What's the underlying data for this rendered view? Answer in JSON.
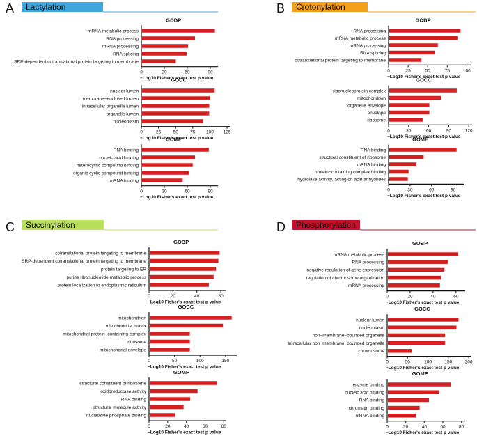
{
  "chart_data": [
    {
      "id": "A",
      "panel_letter": "A",
      "title": "Lactylation",
      "color": "#3fa7dc",
      "subplots": [
        {
          "type": "bar",
          "orientation": "horizontal",
          "title": "GOBP",
          "categories": [
            "mRNA metabolic process",
            "RNA processing",
            "mRNA processing",
            "RNA splicing",
            "SRP-dependent cotranslational protein targeting to membrane"
          ],
          "values": [
            96,
            70,
            61,
            59,
            45
          ],
          "xticks": [
            0,
            30,
            60,
            90
          ],
          "xlim": [
            0,
            100
          ],
          "xlabel": "−Log10 Fisher's exact test p value"
        },
        {
          "type": "bar",
          "orientation": "horizontal",
          "title": "GOCC",
          "categories": [
            "nuclear lumen",
            "membrane−enclosed lumen",
            "intracellular organelle lumen",
            "organelle lumen",
            "nucleoplasm"
          ],
          "values": [
            107,
            100,
            99,
            99,
            90
          ],
          "xticks": [
            0,
            25,
            50,
            75,
            100,
            125
          ],
          "xlim": [
            0,
            130
          ],
          "xlabel": "−Log10 Fisher's exact test p value"
        },
        {
          "type": "bar",
          "orientation": "horizontal",
          "title": "GOMF",
          "categories": [
            "RNA binding",
            "nucleic acid binding",
            "heterocyclic compound binding",
            "organic cyclic compound binding",
            "mRNA binding"
          ],
          "values": [
            88,
            70,
            67,
            62,
            54
          ],
          "xticks": [
            0,
            30,
            60,
            90
          ],
          "xlim": [
            0,
            100
          ],
          "xlabel": "−Log10 Fisher's exact test p value"
        }
      ]
    },
    {
      "id": "B",
      "panel_letter": "B",
      "title": "Crotonylation",
      "color": "#f5a01a",
      "subplots": [
        {
          "type": "bar",
          "orientation": "horizontal",
          "title": "GOBP",
          "categories": [
            "RNA processing",
            "mRNA metabolic process",
            "mRNA processing",
            "RNA splicing",
            "cotranslational protein targeting to membrane"
          ],
          "values": [
            92,
            88,
            63,
            59,
            42
          ],
          "xticks": [
            0,
            25,
            50,
            75,
            100
          ],
          "xlim": [
            0,
            105
          ],
          "xlabel": "−Log10 Fisher's exact test p value"
        },
        {
          "type": "bar",
          "orientation": "horizontal",
          "title": "GOCC",
          "categories": [
            "ribonucleoprotein complex",
            "mitochondrion",
            "organelle envelope",
            "envelope",
            "ribosome"
          ],
          "values": [
            102,
            79,
            61,
            61,
            51
          ],
          "xticks": [
            0,
            30,
            60,
            90,
            120
          ],
          "xlim": [
            0,
            125
          ],
          "xlabel": "−Log10 Fisher's exact test p value"
        },
        {
          "type": "bar",
          "orientation": "horizontal",
          "title": "GOMF",
          "categories": [
            "RNA binding",
            "structural constituent of ribosome",
            "mRNA binding",
            "protein−containing complex binding",
            "hydrolase activity, acting on acid anhydrides"
          ],
          "values": [
            95,
            49,
            39,
            28,
            27
          ],
          "xticks": [
            0,
            30,
            60,
            90
          ],
          "xlim": [
            0,
            105
          ],
          "xlabel": "−Log10 Fisher's exact test p value"
        }
      ]
    },
    {
      "id": "C",
      "panel_letter": "C",
      "title": "Succinylation",
      "color": "#b9e05a",
      "subplots": [
        {
          "type": "bar",
          "orientation": "horizontal",
          "title": "GOBP",
          "categories": [
            "cotranslational protein targeting to membrane",
            "SRP-dependent cotranslational protein targeting to membrane",
            "protein targeting to ER",
            "purine ribonucleotide metabolic process",
            "protein localization to endoplasmic reticulum"
          ],
          "values": [
            59,
            58,
            56,
            54,
            50
          ],
          "xticks": [
            0,
            20,
            40,
            60
          ],
          "xlim": [
            0,
            64
          ],
          "xlabel": "−Log10 Fisher's exact test p value"
        },
        {
          "type": "bar",
          "orientation": "horizontal",
          "title": "GOCC",
          "categories": [
            "mitochondrion",
            "mitochondrial matrix",
            "mitochondrial protein−containing complex",
            "ribosome",
            "mitochondrial envelope"
          ],
          "values": [
            162,
            145,
            80,
            80,
            80
          ],
          "xticks": [
            0,
            50,
            100,
            150
          ],
          "xlim": [
            0,
            172
          ],
          "xlabel": "−Log10 Fisher's exact test p value"
        },
        {
          "type": "bar",
          "orientation": "horizontal",
          "title": "GOMF",
          "categories": [
            "structural constituent of ribosome",
            "oxidoreductase activity",
            "RNA binding",
            "structural molecule activity",
            "nucleoside phosphate binding"
          ],
          "values": [
            73,
            52,
            44,
            37,
            28
          ],
          "xticks": [
            0,
            20,
            40,
            60,
            80
          ],
          "xlim": [
            0,
            82
          ],
          "xlabel": "−Log10 Fisher's exact test p value"
        }
      ]
    },
    {
      "id": "D",
      "panel_letter": "D",
      "title": "Phosphorylation",
      "color": "#c8102e",
      "subplots": [
        {
          "type": "bar",
          "orientation": "horizontal",
          "title": "GOBP",
          "categories": [
            "mRNA metabolic process",
            "RNA processing",
            "negative regulation of gene expression",
            "regulation of chromosome organization",
            "mRNA processing"
          ],
          "values": [
            62,
            53,
            50,
            47,
            46
          ],
          "xticks": [
            0,
            20,
            40,
            60
          ],
          "xlim": [
            0,
            68
          ],
          "xlabel": "−Log10 Fisher's exact test p value"
        },
        {
          "type": "bar",
          "orientation": "horizontal",
          "title": "GOCC",
          "categories": [
            "nuclear lumen",
            "nucleoplasm",
            "non−membrane−bounded organelle",
            "intracellular non−membrane−bounded organelle",
            "chromosome"
          ],
          "values": [
            175,
            170,
            142,
            142,
            60
          ],
          "xticks": [
            0,
            50,
            100,
            150,
            200
          ],
          "xlim": [
            0,
            205
          ],
          "xlabel": "−Log10 Fisher's exact test p value"
        },
        {
          "type": "bar",
          "orientation": "horizontal",
          "title": "GOMF",
          "categories": [
            "enzyme binding",
            "nucleic acid binding",
            "RNA binding",
            "chromatin binding",
            "mRNA binding"
          ],
          "values": [
            69,
            56,
            45,
            35,
            31
          ],
          "xticks": [
            0,
            20,
            40,
            60,
            80
          ],
          "xlim": [
            0,
            84
          ],
          "xlabel": "−Log10 Fisher's exact test p value"
        }
      ]
    }
  ]
}
